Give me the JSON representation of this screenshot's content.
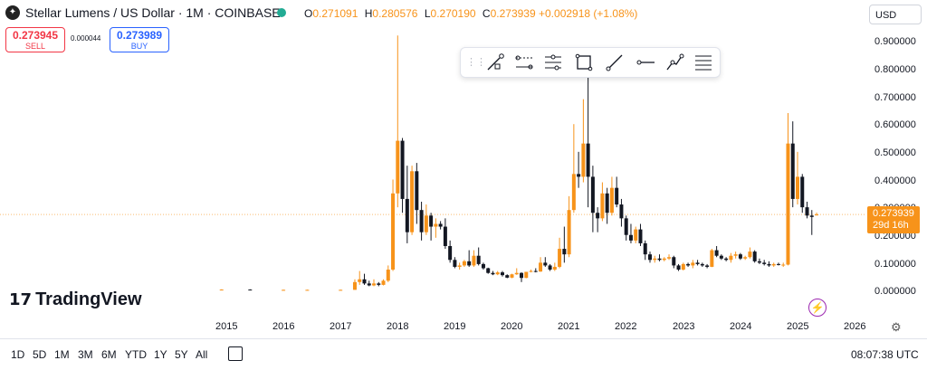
{
  "header": {
    "symbol_logo": "stellar-logo",
    "title": "Stellar Lumens / US Dollar · 1M · COINBASE",
    "ohlc": [
      {
        "key": "O",
        "value": "0.271091"
      },
      {
        "key": "H",
        "value": "0.280576"
      },
      {
        "key": "L",
        "value": "0.270190"
      },
      {
        "key": "C",
        "value": "0.273939"
      }
    ],
    "change": "+0.002918 (+1.08%)",
    "currency": "USD"
  },
  "trade": {
    "sell_price": "0.273945",
    "sell_label": "SELL",
    "spread": "0.000044",
    "buy_price": "0.273989",
    "buy_label": "BUY"
  },
  "drawing_toolbar": {
    "tools": [
      "trend-line-icon",
      "parallel-channel-icon",
      "range-icon",
      "rectangle-icon",
      "ray-icon",
      "horizontal-ray-icon",
      "path-icon",
      "fib-levels-icon"
    ]
  },
  "branding": {
    "name": "TradingView"
  },
  "price_badge": {
    "price": "0.273939",
    "countdown": "29d 16h"
  },
  "range_buttons": [
    "1D",
    "5D",
    "1M",
    "3M",
    "6M",
    "YTD",
    "1Y",
    "5Y",
    "All"
  ],
  "clock": "08:07:38 UTC",
  "colors": {
    "accent": "#f7931a",
    "up": "#f7931a",
    "down": "#131722",
    "sell": "#f23645",
    "buy": "#2962ff"
  },
  "chart_data": {
    "type": "candlestick",
    "interval": "1M",
    "y_ticks": [
      "0.900000",
      "0.800000",
      "0.700000",
      "0.600000",
      "0.500000",
      "0.400000",
      "0.300000",
      "0.200000",
      "0.100000",
      "0.000000"
    ],
    "ylim": [
      0,
      0.92
    ],
    "x_ticks": [
      "2015",
      "2016",
      "2017",
      "2018",
      "2019",
      "2020",
      "2021",
      "2022",
      "2023",
      "2024",
      "2025",
      "2026"
    ],
    "last_price": 0.273939,
    "candles": [
      {
        "t": "2014-12",
        "o": 0.003,
        "h": 0.004,
        "l": 0.002,
        "c": 0.003
      },
      {
        "t": "2015-06",
        "o": 0.003,
        "h": 0.004,
        "l": 0.002,
        "c": 0.002
      },
      {
        "t": "2016-01",
        "o": 0.002,
        "h": 0.003,
        "l": 0.002,
        "c": 0.002
      },
      {
        "t": "2016-06",
        "o": 0.002,
        "h": 0.003,
        "l": 0.002,
        "c": 0.002
      },
      {
        "t": "2017-01",
        "o": 0.002,
        "h": 0.003,
        "l": 0.002,
        "c": 0.002
      },
      {
        "t": "2017-04",
        "o": 0.002,
        "h": 0.04,
        "l": 0.002,
        "c": 0.03
      },
      {
        "t": "2017-05",
        "o": 0.03,
        "h": 0.07,
        "l": 0.02,
        "c": 0.04
      },
      {
        "t": "2017-06",
        "o": 0.04,
        "h": 0.06,
        "l": 0.02,
        "c": 0.025
      },
      {
        "t": "2017-07",
        "o": 0.025,
        "h": 0.035,
        "l": 0.015,
        "c": 0.018
      },
      {
        "t": "2017-08",
        "o": 0.018,
        "h": 0.04,
        "l": 0.015,
        "c": 0.025
      },
      {
        "t": "2017-09",
        "o": 0.025,
        "h": 0.03,
        "l": 0.015,
        "c": 0.02
      },
      {
        "t": "2017-10",
        "o": 0.02,
        "h": 0.04,
        "l": 0.018,
        "c": 0.035
      },
      {
        "t": "2017-11",
        "o": 0.035,
        "h": 0.09,
        "l": 0.03,
        "c": 0.075
      },
      {
        "t": "2017-12",
        "o": 0.075,
        "h": 0.4,
        "l": 0.07,
        "c": 0.35
      },
      {
        "t": "2018-01",
        "o": 0.35,
        "h": 0.92,
        "l": 0.3,
        "c": 0.54
      },
      {
        "t": "2018-02",
        "o": 0.54,
        "h": 0.55,
        "l": 0.28,
        "c": 0.33
      },
      {
        "t": "2018-03",
        "o": 0.33,
        "h": 0.45,
        "l": 0.17,
        "c": 0.21
      },
      {
        "t": "2018-04",
        "o": 0.21,
        "h": 0.45,
        "l": 0.2,
        "c": 0.43
      },
      {
        "t": "2018-05",
        "o": 0.43,
        "h": 0.46,
        "l": 0.24,
        "c": 0.29
      },
      {
        "t": "2018-06",
        "o": 0.29,
        "h": 0.32,
        "l": 0.18,
        "c": 0.21
      },
      {
        "t": "2018-07",
        "o": 0.21,
        "h": 0.31,
        "l": 0.2,
        "c": 0.27
      },
      {
        "t": "2018-08",
        "o": 0.27,
        "h": 0.28,
        "l": 0.18,
        "c": 0.23
      },
      {
        "t": "2018-09",
        "o": 0.23,
        "h": 0.26,
        "l": 0.19,
        "c": 0.24
      },
      {
        "t": "2018-10",
        "o": 0.24,
        "h": 0.25,
        "l": 0.22,
        "c": 0.23
      },
      {
        "t": "2018-11",
        "o": 0.23,
        "h": 0.26,
        "l": 0.15,
        "c": 0.16
      },
      {
        "t": "2018-12",
        "o": 0.16,
        "h": 0.18,
        "l": 0.1,
        "c": 0.11
      },
      {
        "t": "2019-01",
        "o": 0.11,
        "h": 0.12,
        "l": 0.08,
        "c": 0.085
      },
      {
        "t": "2019-02",
        "o": 0.085,
        "h": 0.1,
        "l": 0.075,
        "c": 0.09
      },
      {
        "t": "2019-03",
        "o": 0.09,
        "h": 0.11,
        "l": 0.085,
        "c": 0.105
      },
      {
        "t": "2019-04",
        "o": 0.105,
        "h": 0.145,
        "l": 0.085,
        "c": 0.09
      },
      {
        "t": "2019-05",
        "o": 0.09,
        "h": 0.145,
        "l": 0.085,
        "c": 0.125
      },
      {
        "t": "2019-06",
        "o": 0.125,
        "h": 0.155,
        "l": 0.09,
        "c": 0.095
      },
      {
        "t": "2019-07",
        "o": 0.095,
        "h": 0.1,
        "l": 0.075,
        "c": 0.08
      },
      {
        "t": "2019-08",
        "o": 0.08,
        "h": 0.082,
        "l": 0.06,
        "c": 0.063
      },
      {
        "t": "2019-09",
        "o": 0.063,
        "h": 0.07,
        "l": 0.055,
        "c": 0.058
      },
      {
        "t": "2019-10",
        "o": 0.058,
        "h": 0.07,
        "l": 0.055,
        "c": 0.065
      },
      {
        "t": "2019-11",
        "o": 0.065,
        "h": 0.07,
        "l": 0.05,
        "c": 0.055
      },
      {
        "t": "2019-12",
        "o": 0.055,
        "h": 0.058,
        "l": 0.044,
        "c": 0.046
      },
      {
        "t": "2020-01",
        "o": 0.046,
        "h": 0.06,
        "l": 0.044,
        "c": 0.058
      },
      {
        "t": "2020-02",
        "o": 0.058,
        "h": 0.08,
        "l": 0.056,
        "c": 0.063
      },
      {
        "t": "2020-03",
        "o": 0.063,
        "h": 0.065,
        "l": 0.03,
        "c": 0.045
      },
      {
        "t": "2020-04",
        "o": 0.045,
        "h": 0.067,
        "l": 0.044,
        "c": 0.067
      },
      {
        "t": "2020-05",
        "o": 0.067,
        "h": 0.075,
        "l": 0.065,
        "c": 0.07
      },
      {
        "t": "2020-06",
        "o": 0.07,
        "h": 0.08,
        "l": 0.065,
        "c": 0.068
      },
      {
        "t": "2020-07",
        "o": 0.068,
        "h": 0.12,
        "l": 0.067,
        "c": 0.1
      },
      {
        "t": "2020-08",
        "o": 0.1,
        "h": 0.12,
        "l": 0.085,
        "c": 0.09
      },
      {
        "t": "2020-09",
        "o": 0.09,
        "h": 0.095,
        "l": 0.07,
        "c": 0.075
      },
      {
        "t": "2020-10",
        "o": 0.075,
        "h": 0.1,
        "l": 0.07,
        "c": 0.085
      },
      {
        "t": "2020-11",
        "o": 0.085,
        "h": 0.19,
        "l": 0.08,
        "c": 0.15
      },
      {
        "t": "2020-12",
        "o": 0.15,
        "h": 0.23,
        "l": 0.1,
        "c": 0.13
      },
      {
        "t": "2021-01",
        "o": 0.13,
        "h": 0.34,
        "l": 0.12,
        "c": 0.29
      },
      {
        "t": "2021-02",
        "o": 0.29,
        "h": 0.6,
        "l": 0.28,
        "c": 0.42
      },
      {
        "t": "2021-03",
        "o": 0.42,
        "h": 0.5,
        "l": 0.37,
        "c": 0.41
      },
      {
        "t": "2021-04",
        "o": 0.41,
        "h": 0.69,
        "l": 0.39,
        "c": 0.53
      },
      {
        "t": "2021-05",
        "o": 0.53,
        "h": 0.78,
        "l": 0.3,
        "c": 0.41
      },
      {
        "t": "2021-06",
        "o": 0.41,
        "h": 0.45,
        "l": 0.21,
        "c": 0.28
      },
      {
        "t": "2021-07",
        "o": 0.28,
        "h": 0.3,
        "l": 0.21,
        "c": 0.26
      },
      {
        "t": "2021-08",
        "o": 0.26,
        "h": 0.39,
        "l": 0.25,
        "c": 0.35
      },
      {
        "t": "2021-09",
        "o": 0.35,
        "h": 0.37,
        "l": 0.24,
        "c": 0.28
      },
      {
        "t": "2021-10",
        "o": 0.28,
        "h": 0.41,
        "l": 0.27,
        "c": 0.37
      },
      {
        "t": "2021-11",
        "o": 0.37,
        "h": 0.41,
        "l": 0.3,
        "c": 0.31
      },
      {
        "t": "2021-12",
        "o": 0.31,
        "h": 0.33,
        "l": 0.23,
        "c": 0.26
      },
      {
        "t": "2022-01",
        "o": 0.26,
        "h": 0.27,
        "l": 0.18,
        "c": 0.2
      },
      {
        "t": "2022-02",
        "o": 0.2,
        "h": 0.24,
        "l": 0.17,
        "c": 0.18
      },
      {
        "t": "2022-03",
        "o": 0.18,
        "h": 0.23,
        "l": 0.17,
        "c": 0.22
      },
      {
        "t": "2022-04",
        "o": 0.22,
        "h": 0.24,
        "l": 0.16,
        "c": 0.17
      },
      {
        "t": "2022-05",
        "o": 0.17,
        "h": 0.18,
        "l": 0.11,
        "c": 0.13
      },
      {
        "t": "2022-06",
        "o": 0.13,
        "h": 0.14,
        "l": 0.1,
        "c": 0.11
      },
      {
        "t": "2022-07",
        "o": 0.11,
        "h": 0.125,
        "l": 0.1,
        "c": 0.115
      },
      {
        "t": "2022-08",
        "o": 0.115,
        "h": 0.13,
        "l": 0.105,
        "c": 0.11
      },
      {
        "t": "2022-09",
        "o": 0.11,
        "h": 0.12,
        "l": 0.105,
        "c": 0.115
      },
      {
        "t": "2022-10",
        "o": 0.115,
        "h": 0.13,
        "l": 0.11,
        "c": 0.12
      },
      {
        "t": "2022-11",
        "o": 0.12,
        "h": 0.125,
        "l": 0.08,
        "c": 0.09
      },
      {
        "t": "2022-12",
        "o": 0.09,
        "h": 0.095,
        "l": 0.07,
        "c": 0.075
      },
      {
        "t": "2023-01",
        "o": 0.075,
        "h": 0.1,
        "l": 0.072,
        "c": 0.095
      },
      {
        "t": "2023-02",
        "o": 0.095,
        "h": 0.1,
        "l": 0.085,
        "c": 0.09
      },
      {
        "t": "2023-03",
        "o": 0.09,
        "h": 0.11,
        "l": 0.08,
        "c": 0.1
      },
      {
        "t": "2023-04",
        "o": 0.1,
        "h": 0.11,
        "l": 0.09,
        "c": 0.095
      },
      {
        "t": "2023-05",
        "o": 0.095,
        "h": 0.1,
        "l": 0.085,
        "c": 0.09
      },
      {
        "t": "2023-06",
        "o": 0.09,
        "h": 0.095,
        "l": 0.08,
        "c": 0.085
      },
      {
        "t": "2023-07",
        "o": 0.085,
        "h": 0.15,
        "l": 0.084,
        "c": 0.145
      },
      {
        "t": "2023-08",
        "o": 0.145,
        "h": 0.16,
        "l": 0.12,
        "c": 0.125
      },
      {
        "t": "2023-09",
        "o": 0.125,
        "h": 0.13,
        "l": 0.11,
        "c": 0.115
      },
      {
        "t": "2023-10",
        "o": 0.115,
        "h": 0.12,
        "l": 0.105,
        "c": 0.11
      },
      {
        "t": "2023-11",
        "o": 0.11,
        "h": 0.135,
        "l": 0.1,
        "c": 0.125
      },
      {
        "t": "2023-12",
        "o": 0.125,
        "h": 0.14,
        "l": 0.115,
        "c": 0.13
      },
      {
        "t": "2024-01",
        "o": 0.13,
        "h": 0.135,
        "l": 0.11,
        "c": 0.115
      },
      {
        "t": "2024-02",
        "o": 0.115,
        "h": 0.125,
        "l": 0.11,
        "c": 0.12
      },
      {
        "t": "2024-03",
        "o": 0.12,
        "h": 0.155,
        "l": 0.115,
        "c": 0.14
      },
      {
        "t": "2024-04",
        "o": 0.14,
        "h": 0.145,
        "l": 0.1,
        "c": 0.105
      },
      {
        "t": "2024-05",
        "o": 0.105,
        "h": 0.115,
        "l": 0.095,
        "c": 0.1
      },
      {
        "t": "2024-06",
        "o": 0.1,
        "h": 0.11,
        "l": 0.09,
        "c": 0.095
      },
      {
        "t": "2024-07",
        "o": 0.095,
        "h": 0.105,
        "l": 0.085,
        "c": 0.09
      },
      {
        "t": "2024-08",
        "o": 0.09,
        "h": 0.1,
        "l": 0.085,
        "c": 0.095
      },
      {
        "t": "2024-09",
        "o": 0.095,
        "h": 0.1,
        "l": 0.09,
        "c": 0.092
      },
      {
        "t": "2024-10",
        "o": 0.092,
        "h": 0.1,
        "l": 0.085,
        "c": 0.093
      },
      {
        "t": "2024-11",
        "o": 0.093,
        "h": 0.64,
        "l": 0.09,
        "c": 0.53
      },
      {
        "t": "2024-12",
        "o": 0.53,
        "h": 0.61,
        "l": 0.3,
        "c": 0.33
      },
      {
        "t": "2025-01",
        "o": 0.33,
        "h": 0.5,
        "l": 0.31,
        "c": 0.41
      },
      {
        "t": "2025-02",
        "o": 0.41,
        "h": 0.42,
        "l": 0.28,
        "c": 0.3
      },
      {
        "t": "2025-03",
        "o": 0.3,
        "h": 0.32,
        "l": 0.26,
        "c": 0.27
      },
      {
        "t": "2025-04",
        "o": 0.27,
        "h": 0.29,
        "l": 0.2,
        "c": 0.265
      },
      {
        "t": "2025-05",
        "o": 0.271091,
        "h": 0.280576,
        "l": 0.27019,
        "c": 0.273939
      }
    ]
  }
}
